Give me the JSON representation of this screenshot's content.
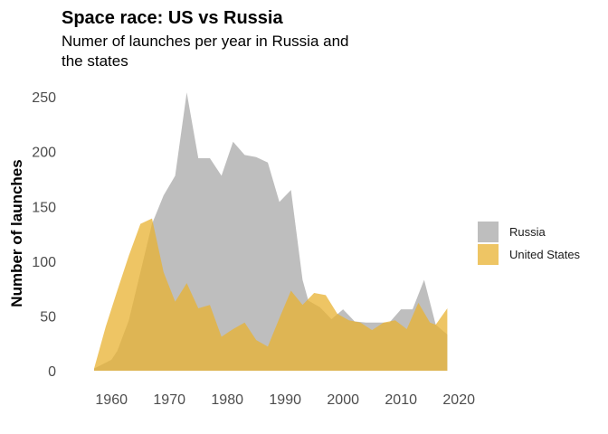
{
  "chart_data": {
    "type": "area",
    "title": "Space race: US vs Russia",
    "subtitle_lines": [
      "Numer of launches per year in Russia and",
      "the states"
    ],
    "xlabel": "",
    "ylabel": "Number of launches",
    "xlim": [
      1952,
      2022
    ],
    "ylim": [
      0,
      260
    ],
    "x_ticks": [
      1960,
      1970,
      1980,
      1990,
      2000,
      2010,
      2020
    ],
    "y_ticks": [
      0,
      50,
      100,
      150,
      200,
      250
    ],
    "grid": false,
    "legend_position": "right",
    "series": [
      {
        "name": "Russia",
        "color": "#b3b3b3",
        "points": [
          [
            1957,
            2
          ],
          [
            1960,
            10
          ],
          [
            1961,
            18
          ],
          [
            1963,
            46
          ],
          [
            1965,
            90
          ],
          [
            1967,
            134
          ],
          [
            1969,
            160
          ],
          [
            1971,
            178
          ],
          [
            1973,
            254
          ],
          [
            1975,
            194
          ],
          [
            1977,
            194
          ],
          [
            1979,
            178
          ],
          [
            1981,
            209
          ],
          [
            1983,
            197
          ],
          [
            1985,
            195
          ],
          [
            1987,
            190
          ],
          [
            1989,
            154
          ],
          [
            1991,
            165
          ],
          [
            1993,
            83
          ],
          [
            1994,
            64
          ],
          [
            1996,
            58
          ],
          [
            1998,
            47
          ],
          [
            2000,
            56
          ],
          [
            2002,
            45
          ],
          [
            2004,
            44
          ],
          [
            2006,
            44
          ],
          [
            2008,
            44
          ],
          [
            2010,
            56
          ],
          [
            2012,
            56
          ],
          [
            2014,
            83
          ],
          [
            2016,
            42
          ],
          [
            2018,
            33
          ]
        ]
      },
      {
        "name": "United States",
        "color": "#e8b230",
        "points": [
          [
            1957,
            2
          ],
          [
            1959,
            40
          ],
          [
            1961,
            73
          ],
          [
            1963,
            105
          ],
          [
            1965,
            134
          ],
          [
            1967,
            139
          ],
          [
            1969,
            90
          ],
          [
            1971,
            63
          ],
          [
            1973,
            80
          ],
          [
            1975,
            57
          ],
          [
            1977,
            60
          ],
          [
            1979,
            31
          ],
          [
            1981,
            38
          ],
          [
            1983,
            44
          ],
          [
            1985,
            28
          ],
          [
            1987,
            22
          ],
          [
            1989,
            48
          ],
          [
            1991,
            73
          ],
          [
            1993,
            60
          ],
          [
            1995,
            71
          ],
          [
            1997,
            69
          ],
          [
            1999,
            52
          ],
          [
            2001,
            46
          ],
          [
            2003,
            44
          ],
          [
            2005,
            37
          ],
          [
            2007,
            44
          ],
          [
            2009,
            46
          ],
          [
            2011,
            38
          ],
          [
            2013,
            62
          ],
          [
            2015,
            44
          ],
          [
            2016,
            42
          ],
          [
            2018,
            57
          ]
        ]
      }
    ]
  }
}
